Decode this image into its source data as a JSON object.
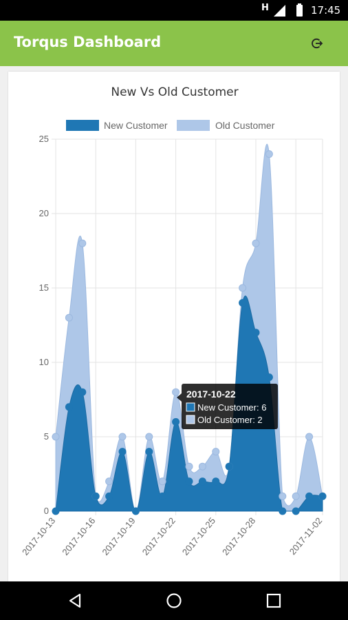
{
  "status_bar": {
    "network_indicator": "H",
    "time": "17:45",
    "icons": [
      "h-network-icon",
      "cell-signal-icon",
      "battery-icon"
    ]
  },
  "app_bar": {
    "title": "Torqus Dashboard",
    "logout_icon": "logout-icon"
  },
  "colors": {
    "app_bar": "#8bc34a",
    "new_customer": "#1f77b4",
    "old_customer": "#aec7e8"
  },
  "chart_data": {
    "type": "area",
    "title": "New Vs Old Customer",
    "legend_position": "top",
    "grid": true,
    "ylim": [
      0,
      25
    ],
    "y_ticks": [
      "0",
      "5",
      "10",
      "15",
      "20",
      "25"
    ],
    "x_tick_labels": [
      "2017-10-13",
      "2017-10-16",
      "2017-10-19",
      "2017-10-22",
      "2017-10-25",
      "2017-10-28",
      "2017-11-02"
    ],
    "x": [
      "2017-10-13",
      "2017-10-14",
      "2017-10-15",
      "2017-10-16",
      "2017-10-17",
      "2017-10-18",
      "2017-10-19",
      "2017-10-20",
      "2017-10-21",
      "2017-10-22",
      "2017-10-23",
      "2017-10-24",
      "2017-10-25",
      "2017-10-26",
      "2017-10-27",
      "2017-10-28",
      "2017-10-29",
      "2017-10-30",
      "2017-10-31",
      "2017-11-01",
      "2017-11-02"
    ],
    "series": [
      {
        "name": "New Customer",
        "color": "#1f77b4",
        "values": [
          0,
          7,
          8,
          1,
          1,
          4,
          0,
          4,
          1,
          6,
          2,
          2,
          2,
          3,
          14,
          12,
          9,
          0,
          0,
          1,
          1
        ]
      },
      {
        "name": "Old Customer",
        "color": "#aec7e8",
        "values": [
          5,
          6,
          10,
          0,
          1,
          1,
          0,
          1,
          1,
          2,
          1,
          1,
          2,
          0,
          1,
          6,
          15,
          1,
          1,
          4,
          0
        ]
      }
    ],
    "tooltip": {
      "title": "2017-10-22",
      "lines": [
        "New Customer: 6",
        "Old Customer: 2"
      ]
    }
  },
  "nav_bar": {
    "buttons": [
      "back-icon",
      "home-icon",
      "recents-icon"
    ]
  }
}
